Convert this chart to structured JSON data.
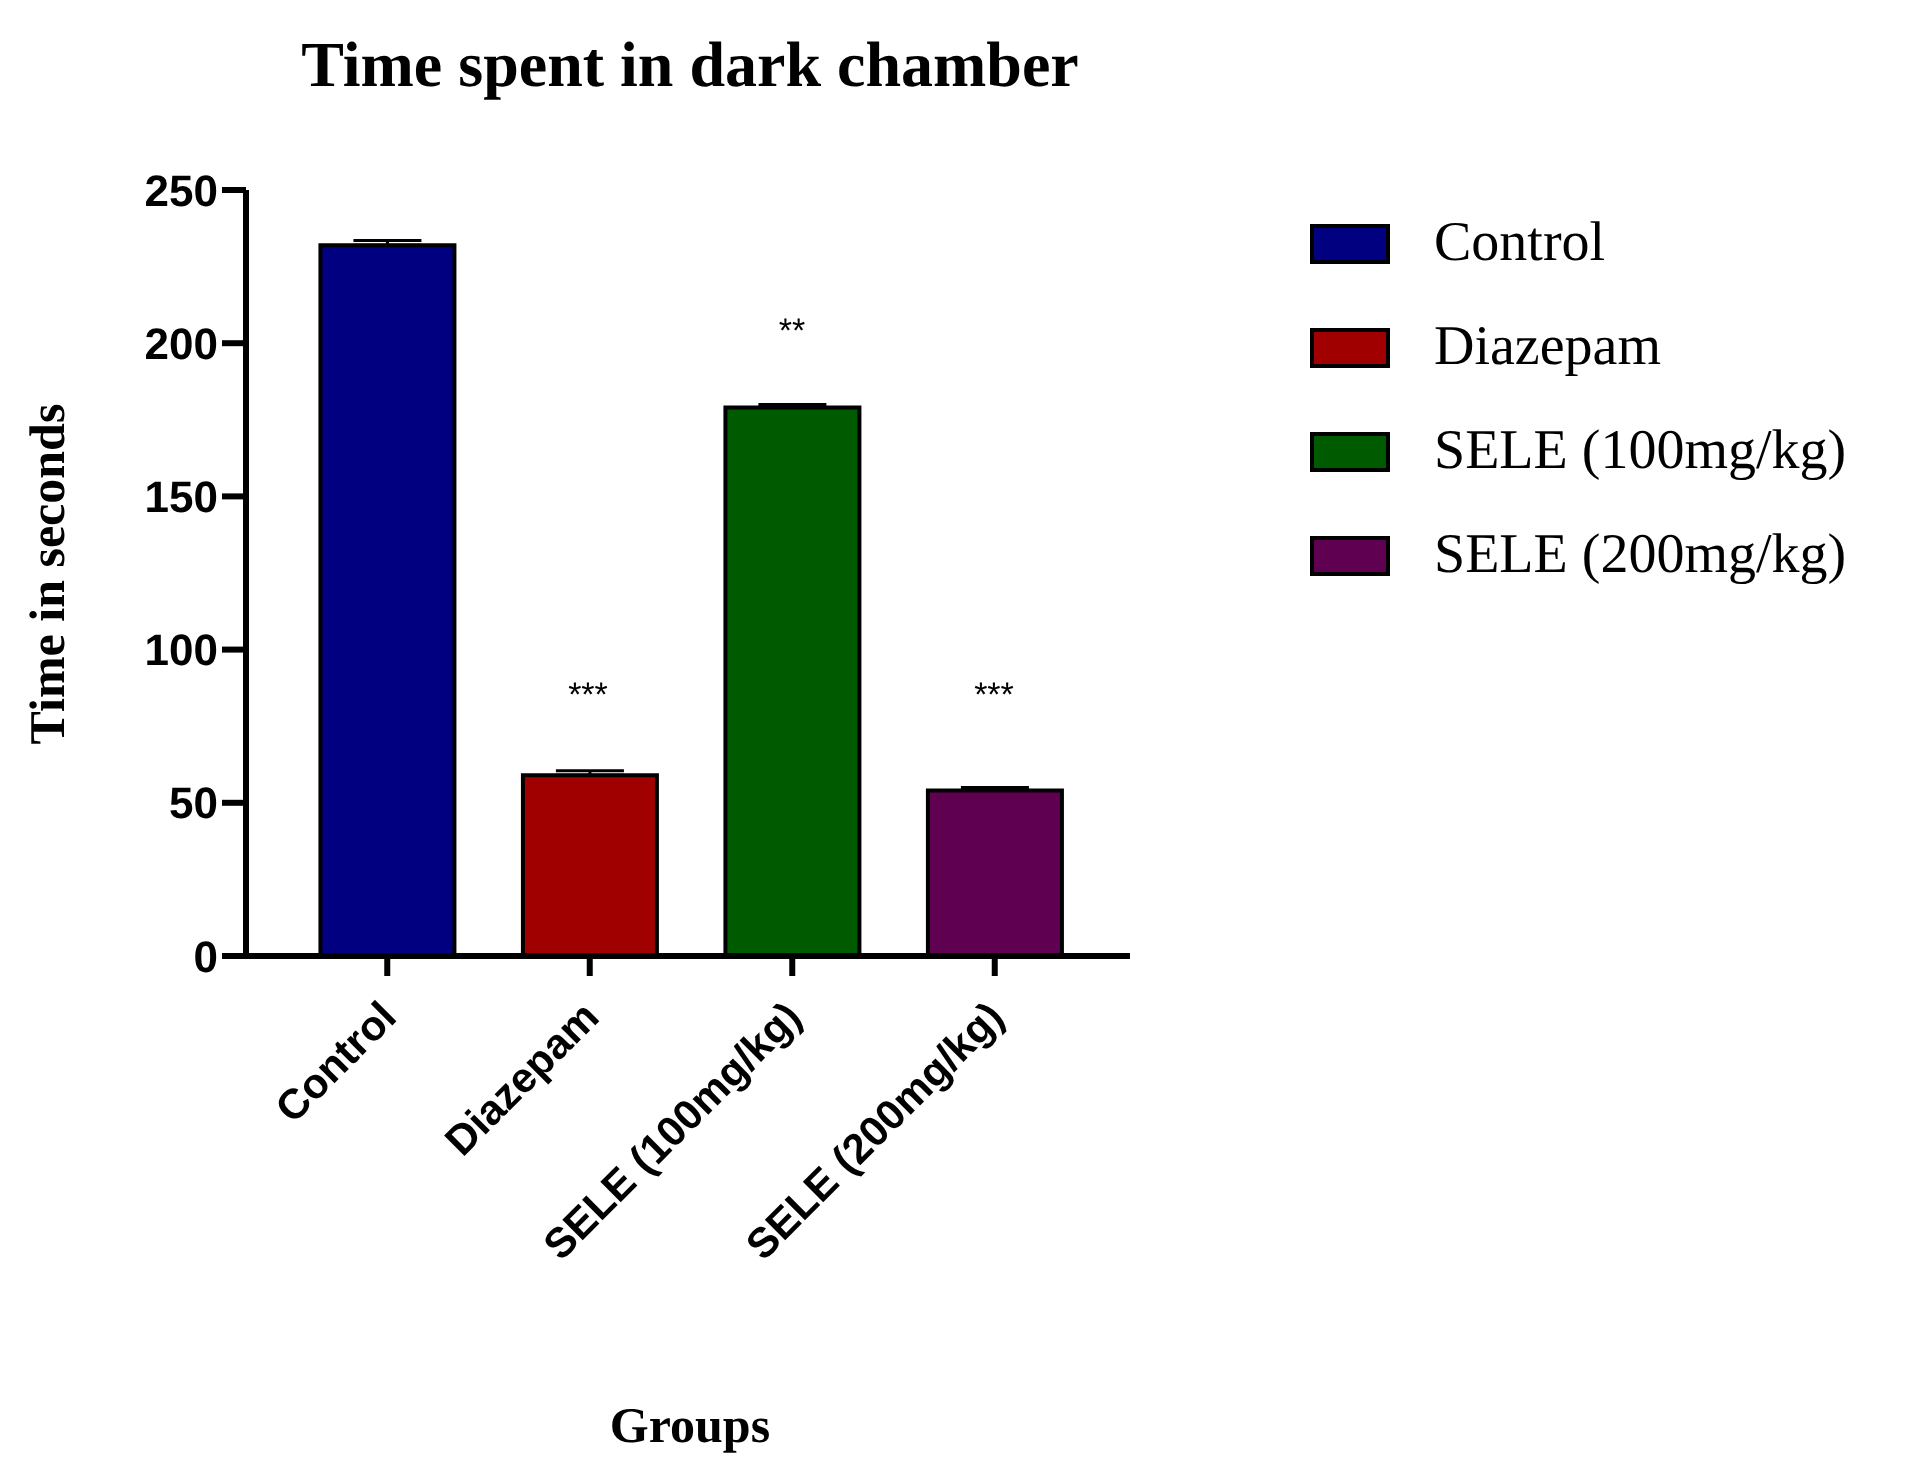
{
  "chart_data": {
    "type": "bar",
    "title": "Time spent in dark chamber",
    "xlabel": "Groups",
    "ylabel": "Time in seconds",
    "categories": [
      "Control",
      "Diazepam",
      "SELE (100mg/kg)",
      "SELE (200mg/kg)"
    ],
    "stacked": true,
    "series": [
      {
        "name": "Control",
        "color": "#000080",
        "values": [
          232,
          null,
          null,
          null
        ],
        "errors": [
          [
            232,
            233.5
          ],
          null,
          null,
          null
        ]
      },
      {
        "name": "Diazepam",
        "color": "#a00000",
        "values": [
          null,
          59,
          null,
          null
        ],
        "errors": [
          null,
          [
            59,
            60.5
          ],
          null,
          null
        ]
      },
      {
        "name": "SELE (100mg/kg)",
        "color": "#005a00",
        "values": [
          null,
          null,
          179,
          null
        ],
        "errors": [
          null,
          null,
          [
            179,
            180
          ],
          null
        ]
      },
      {
        "name": "SELE (200mg/kg)",
        "color": "#600050",
        "values": [
          null,
          null,
          null,
          54
        ],
        "errors": [
          null,
          null,
          null,
          [
            54,
            55
          ]
        ]
      }
    ],
    "ylim": [
      0,
      250
    ],
    "yticks": [
      0,
      50,
      100,
      150,
      200,
      250
    ],
    "annotations": [
      "***",
      "**",
      "***"
    ],
    "legend": "right",
    "grid": false
  }
}
